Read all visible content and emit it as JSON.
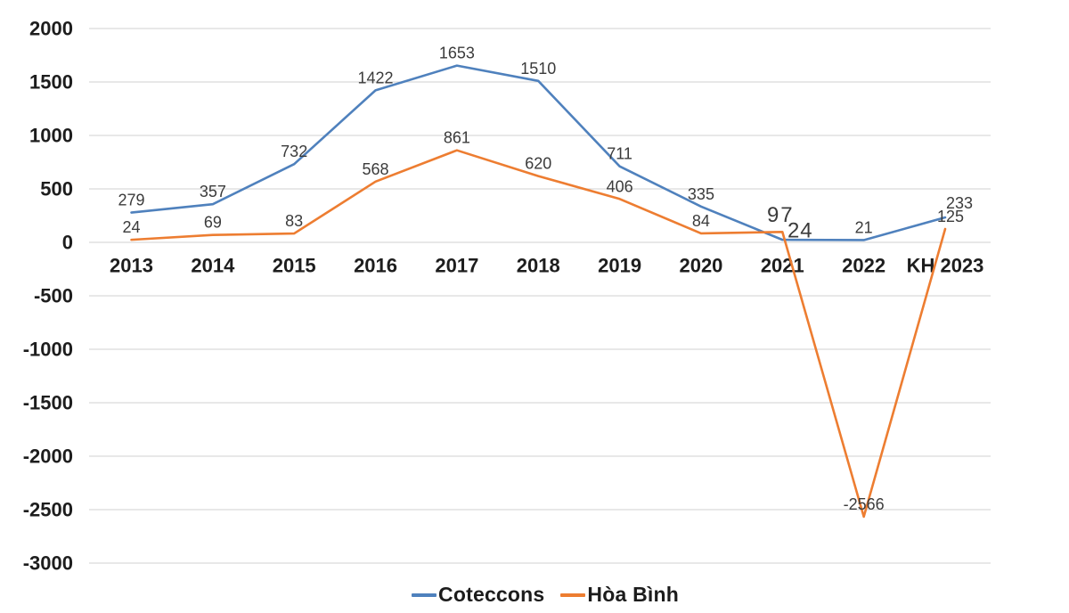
{
  "chart_data": {
    "type": "line",
    "title": "",
    "categories": [
      "2013",
      "2014",
      "2015",
      "2016",
      "2017",
      "2018",
      "2019",
      "2020",
      "2021",
      "2022",
      "KH 2023"
    ],
    "series": [
      {
        "name": "Coteccons",
        "color": "#4f81bd",
        "values": [
          279,
          357,
          732,
          1422,
          1653,
          1510,
          711,
          335,
          24,
          21,
          233
        ]
      },
      {
        "name": "Hòa Bình",
        "color": "#ed7d31",
        "values": [
          24,
          69,
          83,
          568,
          861,
          620,
          406,
          84,
          97,
          -2566,
          125
        ]
      }
    ],
    "y_axis": {
      "min": -3000,
      "max": 2000,
      "step": 500,
      "ticks": [
        2000,
        1500,
        1000,
        500,
        0,
        -500,
        -1000,
        -1500,
        -2000,
        -2500,
        -3000
      ]
    },
    "x_axis_label": "",
    "y_axis_label": "",
    "grid": true,
    "legend_position": "bottom",
    "colors": {
      "grid": "#d9d9d9",
      "axis_text": "#1d1d1d",
      "data_label_text": "#3b3b3b",
      "background": "#ffffff"
    },
    "label_overrides": {
      "0-8": {
        "dx": 20,
        "dy": -10,
        "size": 24,
        "ls": 1
      },
      "0-10": {
        "dx": 16,
        "dy": -16
      },
      "1-8": {
        "dx": -2,
        "dy": -19,
        "size": 24,
        "ls": 2
      },
      "1-10": {
        "dx": 6,
        "dy": -14
      }
    }
  },
  "legend": {
    "items": [
      {
        "label": "Coteccons"
      },
      {
        "label": "Hòa Bình"
      }
    ]
  }
}
